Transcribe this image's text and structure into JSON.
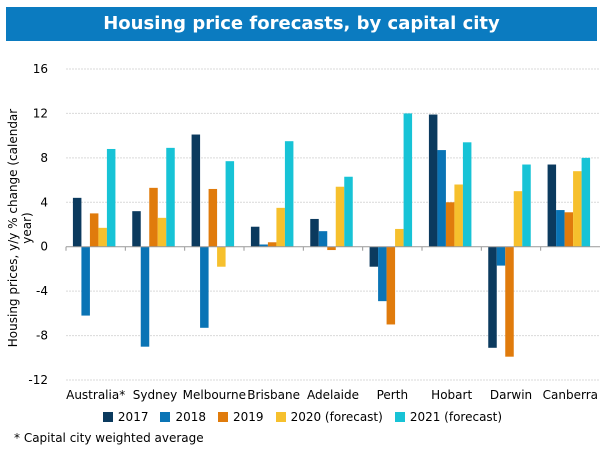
{
  "chart_data": {
    "type": "bar",
    "title": "Housing price forecasts, by capital city",
    "xlabel": "",
    "ylabel": "Housing prices, y/y % change (calendar year)",
    "ylim": [
      -12,
      16
    ],
    "yticks": [
      16,
      12,
      8,
      4,
      0,
      -4,
      -8,
      -12
    ],
    "grid": true,
    "legend": "bottom",
    "categories": [
      "Australia*",
      "Sydney",
      "Melbourne",
      "Brisbane",
      "Adelaide",
      "Perth",
      "Hobart",
      "Darwin",
      "Canberra"
    ],
    "series": [
      {
        "name": "2017",
        "color": "#0b3a5e",
        "values": [
          4.4,
          3.2,
          10.1,
          1.8,
          2.5,
          -1.8,
          11.9,
          -9.1,
          7.4
        ]
      },
      {
        "name": "2018",
        "color": "#0a74b5",
        "values": [
          -6.2,
          -9.0,
          -7.3,
          0.2,
          1.4,
          -4.9,
          8.7,
          -1.7,
          3.3
        ]
      },
      {
        "name": "2019",
        "color": "#e07b0c",
        "values": [
          3.0,
          5.3,
          5.2,
          0.4,
          -0.3,
          -7.0,
          4.0,
          -9.9,
          3.1
        ]
      },
      {
        "name": "2020 (forecast)",
        "color": "#f6c02d",
        "values": [
          1.7,
          2.6,
          -1.8,
          3.5,
          5.4,
          1.6,
          5.6,
          5.0,
          6.8
        ]
      },
      {
        "name": "2021 (forecast)",
        "color": "#17c3d6",
        "values": [
          8.8,
          8.9,
          7.7,
          9.5,
          6.3,
          12.0,
          9.4,
          7.4,
          8.0
        ]
      }
    ],
    "footnote": "* Capital city weighted average"
  }
}
